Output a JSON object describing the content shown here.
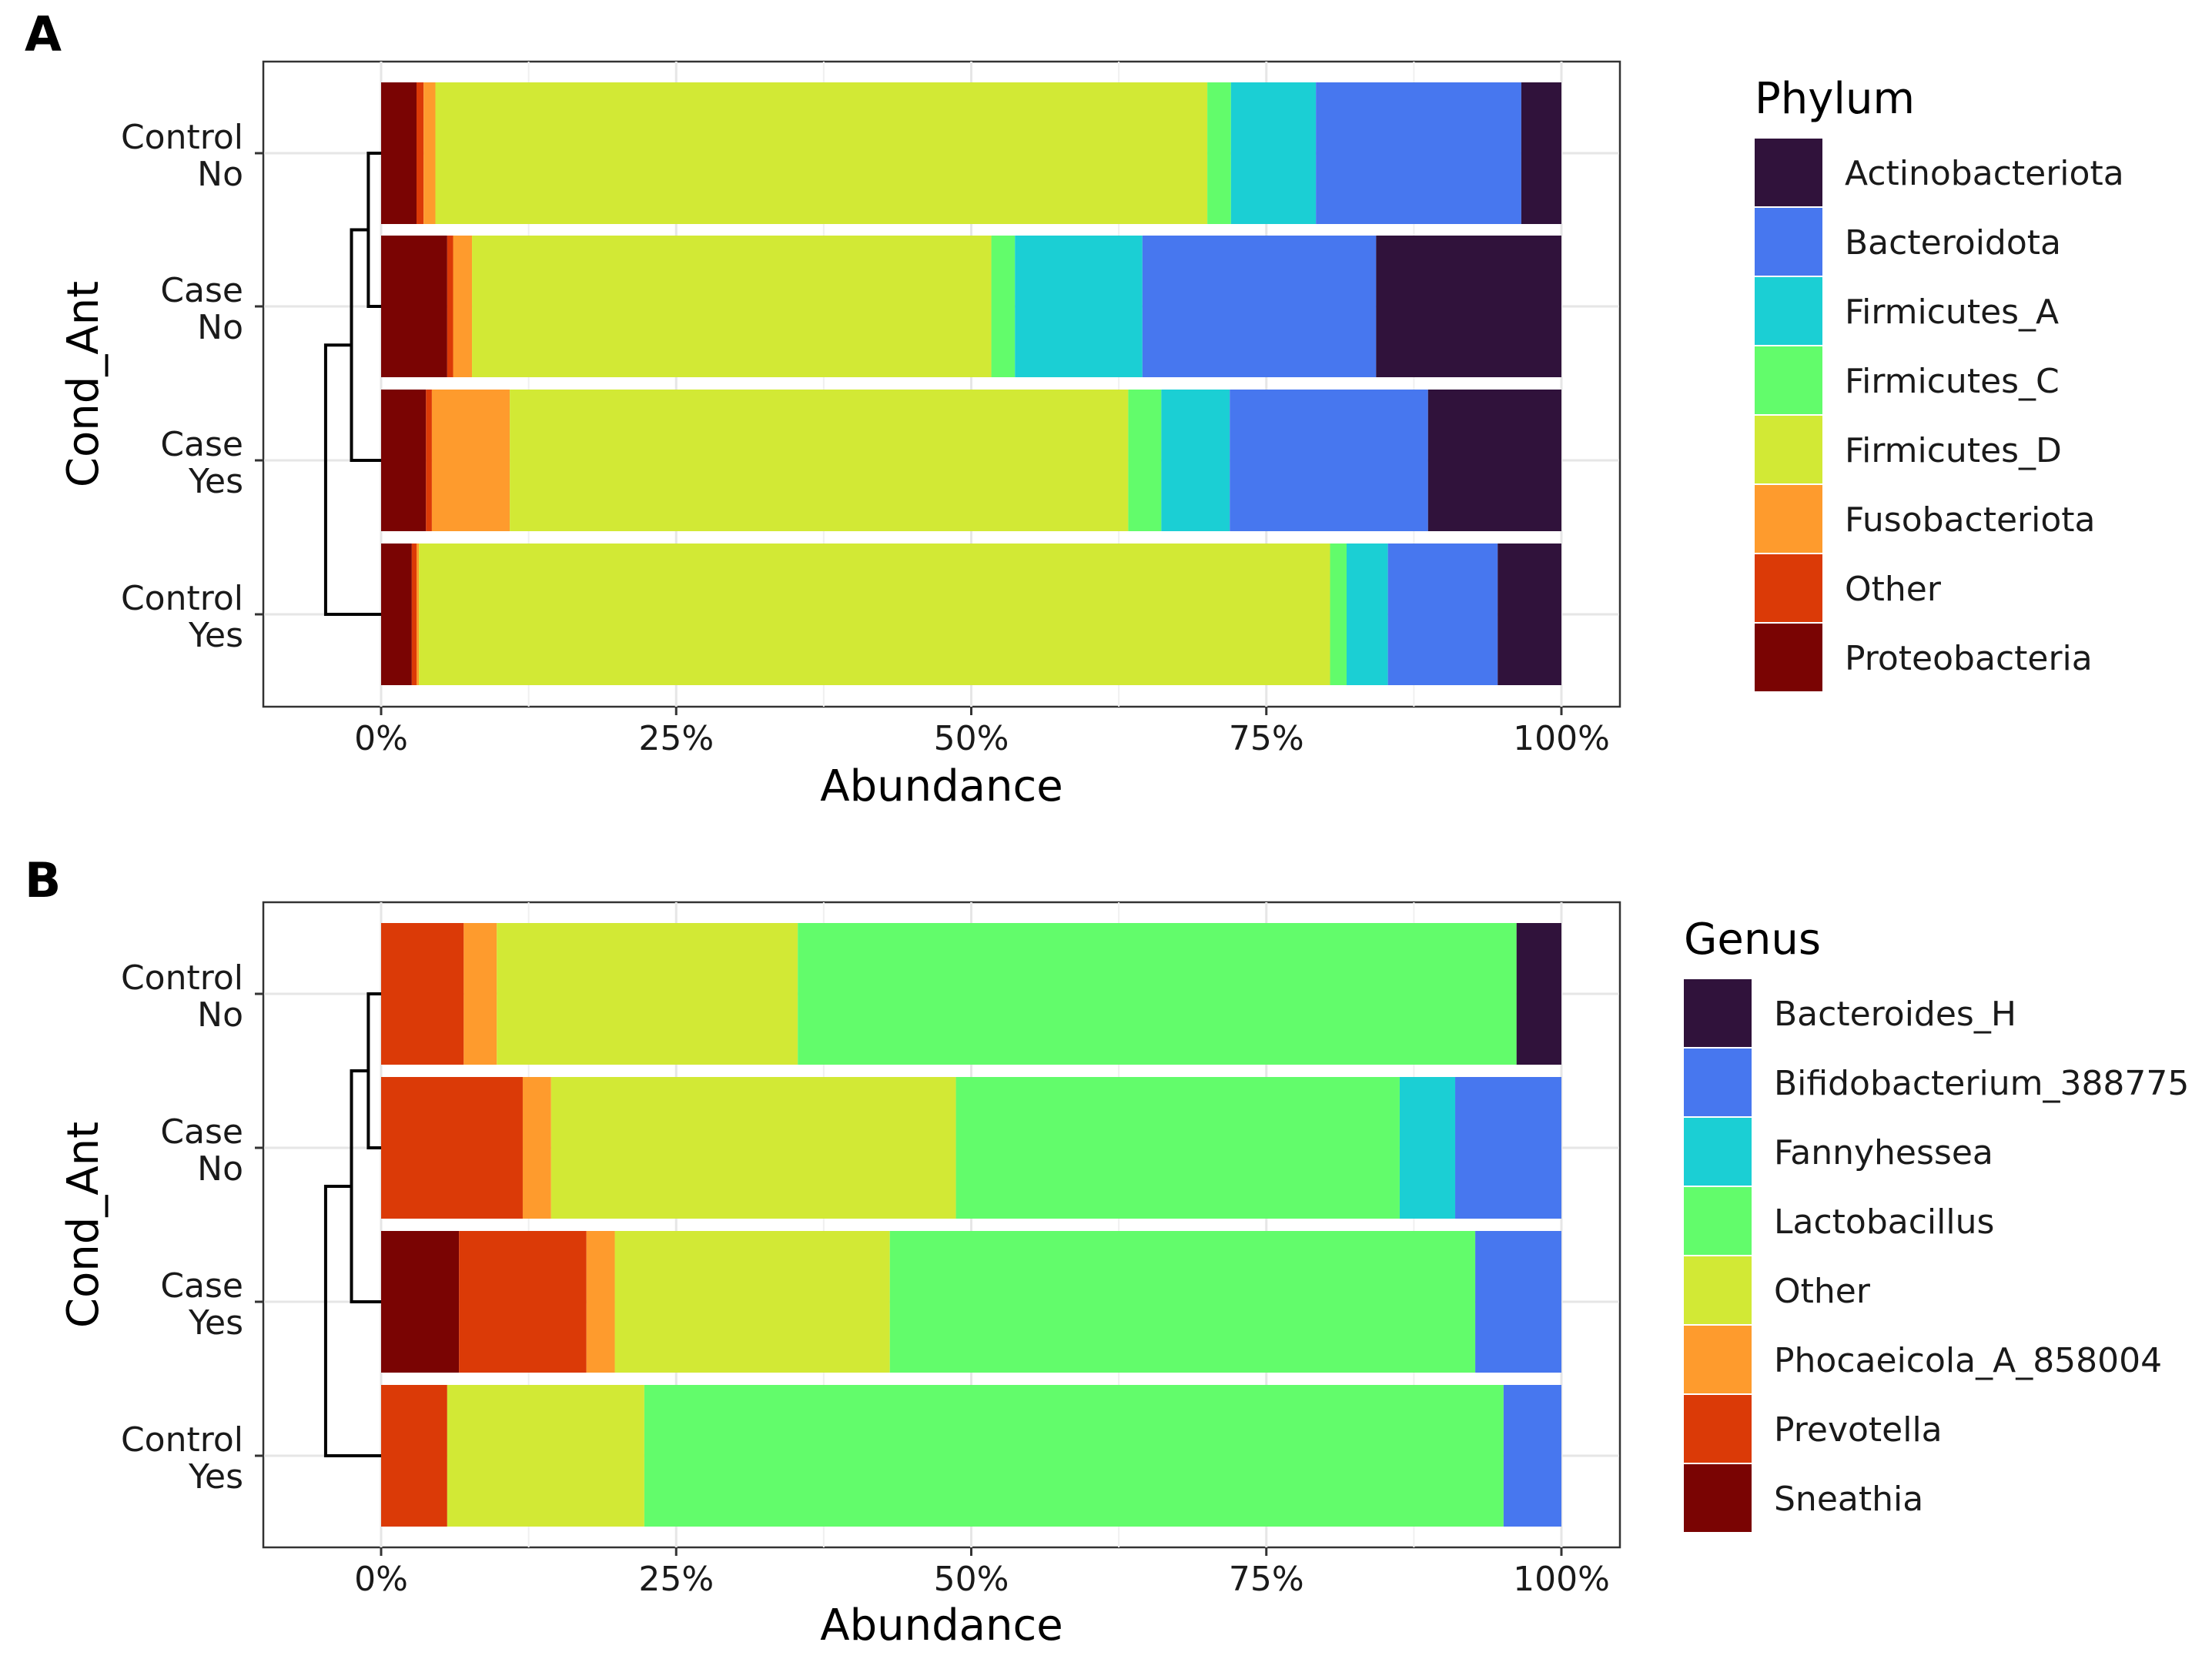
{
  "figure": {
    "panels": [
      {
        "letter": "A",
        "legend_title": "Phylum",
        "chart_data": {
          "type": "bar",
          "orientation": "horizontal",
          "stacked": true,
          "categories": [
            {
              "line1": "Control",
              "line2": "No"
            },
            {
              "line1": "Case",
              "line2": "No"
            },
            {
              "line1": "Case",
              "line2": "Yes"
            },
            {
              "line1": "Control",
              "line2": "Yes"
            }
          ],
          "series": [
            {
              "name": "Proteobacteria",
              "color": "#7a0403",
              "values": [
                3.0,
                5.6,
                3.8,
                2.6
              ]
            },
            {
              "name": "Other",
              "color": "#db3a07",
              "values": [
                0.6,
                0.5,
                0.5,
                0.4
              ]
            },
            {
              "name": "Fusobacteriota",
              "color": "#fe9b2d",
              "values": [
                1.0,
                1.6,
                6.6,
                0.2
              ]
            },
            {
              "name": "Firmicutes_D",
              "color": "#d2e935",
              "values": [
                65.4,
                44.0,
                52.4,
                77.2
              ]
            },
            {
              "name": "Firmicutes_C",
              "color": "#62fc6b",
              "values": [
                2.0,
                2.0,
                2.8,
                1.4
              ]
            },
            {
              "name": "Firmicutes_A",
              "color": "#1bcfd4",
              "values": [
                7.2,
                10.8,
                5.8,
                3.5
              ]
            },
            {
              "name": "Bacteroidota",
              "color": "#4777ef",
              "values": [
                17.4,
                19.8,
                16.8,
                9.3
              ]
            },
            {
              "name": "Actinobacteriota",
              "color": "#30123b",
              "values": [
                3.4,
                15.7,
                11.3,
                5.4
              ]
            }
          ],
          "legend_order": [
            "Actinobacteriota",
            "Bacteroidota",
            "Firmicutes_A",
            "Firmicutes_C",
            "Firmicutes_D",
            "Fusobacteriota",
            "Other",
            "Proteobacteria"
          ],
          "xlim": [
            -10,
            105
          ],
          "x_ticks": [
            0,
            25,
            50,
            75,
            100
          ],
          "x_tick_labels": [
            "0%",
            "25%",
            "50%",
            "75%",
            "100%"
          ],
          "xlabel": "Abundance",
          "ylabel": "Cond_Ant",
          "dendrogram": {
            "leaf_order": [
              "Control No",
              "Case No",
              "Case Yes",
              "Control Yes"
            ],
            "merges": [
              {
                "left": "Control No",
                "right": "Case No",
                "height": 1.0
              },
              {
                "left": "Control No + Case No",
                "right": "Case Yes",
                "height": 2.5
              },
              {
                "left": "Control No + Case No + Case Yes",
                "right": "Control Yes",
                "height": 4.8
              }
            ]
          },
          "grid": true,
          "legend_position": "right"
        }
      },
      {
        "letter": "B",
        "legend_title": "Genus",
        "chart_data": {
          "type": "bar",
          "orientation": "horizontal",
          "stacked": true,
          "categories": [
            {
              "line1": "Control",
              "line2": "No"
            },
            {
              "line1": "Case",
              "line2": "No"
            },
            {
              "line1": "Case",
              "line2": "Yes"
            },
            {
              "line1": "Control",
              "line2": "Yes"
            }
          ],
          "series": [
            {
              "name": "Sneathia",
              "color": "#7a0403",
              "values": [
                0.0,
                0.0,
                6.6,
                0.0
              ]
            },
            {
              "name": "Prevotella",
              "color": "#db3a07",
              "values": [
                7.0,
                12.0,
                10.8,
                5.6
              ]
            },
            {
              "name": "Phocaeicola_A_858004",
              "color": "#fe9b2d",
              "values": [
                2.8,
                2.4,
                2.4,
                0.0
              ]
            },
            {
              "name": "Other",
              "color": "#d2e935",
              "values": [
                25.5,
                34.3,
                23.3,
                16.7
              ]
            },
            {
              "name": "Lactobacillus",
              "color": "#62fc6b",
              "values": [
                60.9,
                37.6,
                49.6,
                72.8
              ]
            },
            {
              "name": "Fannyhessea",
              "color": "#1bcfd4",
              "values": [
                0.0,
                4.7,
                0.0,
                0.0
              ]
            },
            {
              "name": "Bifidobacterium_388775",
              "color": "#4777ef",
              "values": [
                0.0,
                9.0,
                7.3,
                4.9
              ]
            },
            {
              "name": "Bacteroides_H",
              "color": "#30123b",
              "values": [
                3.8,
                0.0,
                0.0,
                0.0
              ]
            }
          ],
          "legend_order": [
            "Bacteroides_H",
            "Bifidobacterium_388775",
            "Fannyhessea",
            "Lactobacillus",
            "Other",
            "Phocaeicola_A_858004",
            "Prevotella",
            "Sneathia"
          ],
          "xlim": [
            -10,
            105
          ],
          "x_ticks": [
            0,
            25,
            50,
            75,
            100
          ],
          "x_tick_labels": [
            "0%",
            "25%",
            "50%",
            "75%",
            "100%"
          ],
          "xlabel": "Abundance",
          "ylabel": "Cond_Ant",
          "dendrogram": {
            "leaf_order": [
              "Control No",
              "Case No",
              "Case Yes",
              "Control Yes"
            ],
            "merges": [
              {
                "left": "Control No",
                "right": "Case No",
                "height": 1.0
              },
              {
                "left": "Control No + Case No",
                "right": "Case Yes",
                "height": 2.5
              },
              {
                "left": "Control No + Case No + Case Yes",
                "right": "Control Yes",
                "height": 4.8
              }
            ]
          },
          "grid": true,
          "legend_position": "right"
        }
      }
    ]
  }
}
